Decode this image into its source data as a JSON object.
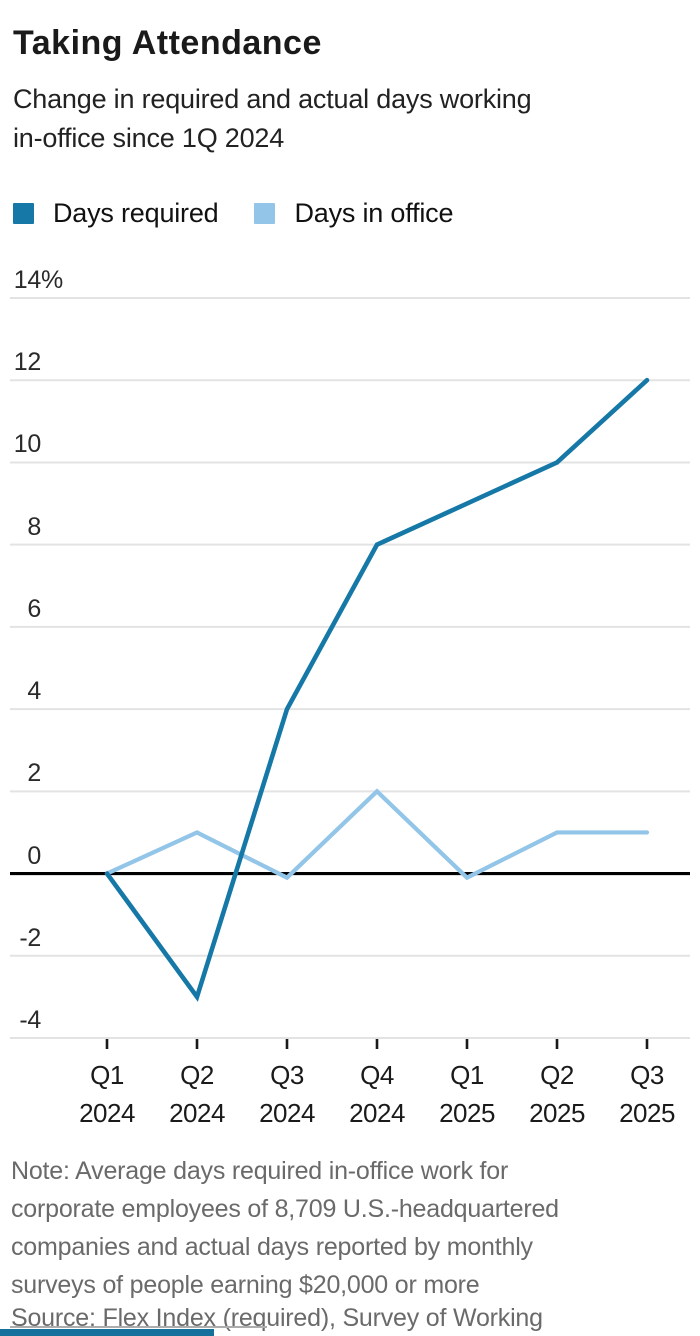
{
  "header": {
    "title": "Taking Attendance",
    "subtitle_line1": "Change in required and actual days working",
    "subtitle_line2": "in-office since 1Q 2024"
  },
  "legend": [
    {
      "label": "Days required",
      "color": "#1578a6"
    },
    {
      "label": "Days in office",
      "color": "#92c5e8"
    }
  ],
  "chart_data": {
    "type": "line",
    "title": "Taking Attendance",
    "subtitle": "Change in required and actual days working in-office since 1Q 2024",
    "unit": "percent",
    "categories": [
      [
        "Q1",
        "2024"
      ],
      [
        "Q2",
        "2024"
      ],
      [
        "Q3",
        "2024"
      ],
      [
        "Q4",
        "2024"
      ],
      [
        "Q1",
        "2025"
      ],
      [
        "Q2",
        "2025"
      ],
      [
        "Q3",
        "2025"
      ]
    ],
    "series": [
      {
        "name": "Days required",
        "color": "#1578a6",
        "values": [
          0,
          -3,
          4,
          8,
          9,
          10,
          12
        ]
      },
      {
        "name": "Days in office",
        "color": "#92c5e8",
        "values": [
          0,
          1,
          -0.1,
          2,
          -0.1,
          1,
          1
        ]
      }
    ],
    "ylim": [
      -4,
      14
    ],
    "yticks": [
      {
        "value": 14,
        "label": "14",
        "suffix": "%"
      },
      {
        "value": 12,
        "label": "12"
      },
      {
        "value": 10,
        "label": "10"
      },
      {
        "value": 8,
        "label": "8"
      },
      {
        "value": 6,
        "label": "6"
      },
      {
        "value": 4,
        "label": "4"
      },
      {
        "value": 2,
        "label": "2"
      },
      {
        "value": 0,
        "label": "0"
      },
      {
        "value": -2,
        "label": "-2"
      },
      {
        "value": -4,
        "label": "-4"
      }
    ],
    "grid": "horizontal",
    "zero_line": true,
    "legend_position": "top"
  },
  "note": {
    "lines": [
      "Note: Average days required in-office work for",
      "corporate employees of 8,709 U.S.-headquartered",
      "companies and actual days reported by monthly",
      "surveys of people earning $20,000 or more"
    ],
    "source": "Source: Flex Index (required), Survey of Working"
  },
  "colors": {
    "grid": "#e3e3e3",
    "zero_line": "#000000",
    "tick": "#1a1a1a",
    "accent_bar": "#15719c",
    "title_text": "#1a1a1a",
    "note_text": "#6a6a6a"
  }
}
